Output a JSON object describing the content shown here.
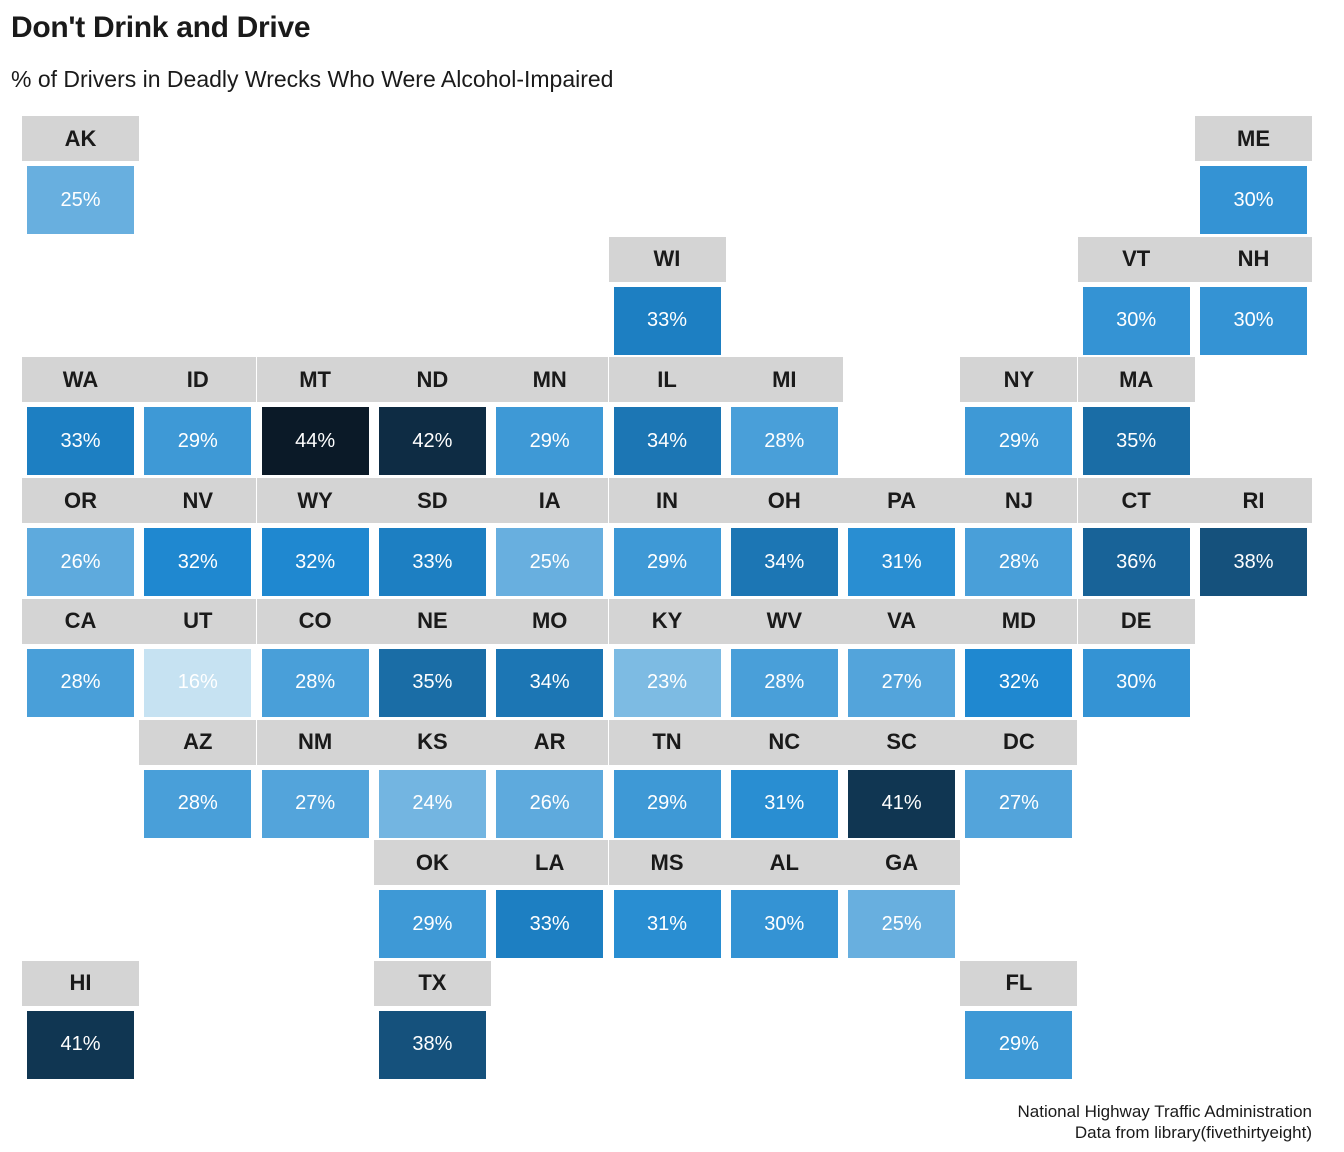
{
  "chart_data": {
    "type": "heatmap",
    "title": "Don't Drink and Drive",
    "subtitle": "% of Drivers in Deadly Wrecks Who Were Alcohol-Impaired",
    "caption_lines": [
      "National Highway Traffic Administration",
      "Data from library(fivethirtyeight)"
    ],
    "value_suffix": "%",
    "color_scale": {
      "min_value": 16,
      "max_value": 44,
      "low_color": "#c6e2f2",
      "mid_color": "#1f88d0",
      "high_color": "#0b1a28"
    },
    "tiles": [
      {
        "state": "AK",
        "value": 25,
        "row": 0,
        "col": 0
      },
      {
        "state": "ME",
        "value": 30,
        "row": 0,
        "col": 10
      },
      {
        "state": "WI",
        "value": 33,
        "row": 1,
        "col": 5
      },
      {
        "state": "VT",
        "value": 30,
        "row": 1,
        "col": 9
      },
      {
        "state": "NH",
        "value": 30,
        "row": 1,
        "col": 10
      },
      {
        "state": "WA",
        "value": 33,
        "row": 2,
        "col": 0
      },
      {
        "state": "ID",
        "value": 29,
        "row": 2,
        "col": 1
      },
      {
        "state": "MT",
        "value": 44,
        "row": 2,
        "col": 2
      },
      {
        "state": "ND",
        "value": 42,
        "row": 2,
        "col": 3
      },
      {
        "state": "MN",
        "value": 29,
        "row": 2,
        "col": 4
      },
      {
        "state": "IL",
        "value": 34,
        "row": 2,
        "col": 5
      },
      {
        "state": "MI",
        "value": 28,
        "row": 2,
        "col": 6
      },
      {
        "state": "NY",
        "value": 29,
        "row": 2,
        "col": 8
      },
      {
        "state": "MA",
        "value": 35,
        "row": 2,
        "col": 9
      },
      {
        "state": "OR",
        "value": 26,
        "row": 3,
        "col": 0
      },
      {
        "state": "NV",
        "value": 32,
        "row": 3,
        "col": 1
      },
      {
        "state": "WY",
        "value": 32,
        "row": 3,
        "col": 2
      },
      {
        "state": "SD",
        "value": 33,
        "row": 3,
        "col": 3
      },
      {
        "state": "IA",
        "value": 25,
        "row": 3,
        "col": 4
      },
      {
        "state": "IN",
        "value": 29,
        "row": 3,
        "col": 5
      },
      {
        "state": "OH",
        "value": 34,
        "row": 3,
        "col": 6
      },
      {
        "state": "PA",
        "value": 31,
        "row": 3,
        "col": 7
      },
      {
        "state": "NJ",
        "value": 28,
        "row": 3,
        "col": 8
      },
      {
        "state": "CT",
        "value": 36,
        "row": 3,
        "col": 9
      },
      {
        "state": "RI",
        "value": 38,
        "row": 3,
        "col": 10
      },
      {
        "state": "CA",
        "value": 28,
        "row": 4,
        "col": 0
      },
      {
        "state": "UT",
        "value": 16,
        "row": 4,
        "col": 1
      },
      {
        "state": "CO",
        "value": 28,
        "row": 4,
        "col": 2
      },
      {
        "state": "NE",
        "value": 35,
        "row": 4,
        "col": 3
      },
      {
        "state": "MO",
        "value": 34,
        "row": 4,
        "col": 4
      },
      {
        "state": "KY",
        "value": 23,
        "row": 4,
        "col": 5
      },
      {
        "state": "WV",
        "value": 28,
        "row": 4,
        "col": 6
      },
      {
        "state": "VA",
        "value": 27,
        "row": 4,
        "col": 7
      },
      {
        "state": "MD",
        "value": 32,
        "row": 4,
        "col": 8
      },
      {
        "state": "DE",
        "value": 30,
        "row": 4,
        "col": 9
      },
      {
        "state": "AZ",
        "value": 28,
        "row": 5,
        "col": 1
      },
      {
        "state": "NM",
        "value": 27,
        "row": 5,
        "col": 2
      },
      {
        "state": "KS",
        "value": 24,
        "row": 5,
        "col": 3
      },
      {
        "state": "AR",
        "value": 26,
        "row": 5,
        "col": 4
      },
      {
        "state": "TN",
        "value": 29,
        "row": 5,
        "col": 5
      },
      {
        "state": "NC",
        "value": 31,
        "row": 5,
        "col": 6
      },
      {
        "state": "SC",
        "value": 41,
        "row": 5,
        "col": 7
      },
      {
        "state": "DC",
        "value": 27,
        "row": 5,
        "col": 8
      },
      {
        "state": "OK",
        "value": 29,
        "row": 6,
        "col": 3
      },
      {
        "state": "LA",
        "value": 33,
        "row": 6,
        "col": 4
      },
      {
        "state": "MS",
        "value": 31,
        "row": 6,
        "col": 5
      },
      {
        "state": "AL",
        "value": 30,
        "row": 6,
        "col": 6
      },
      {
        "state": "GA",
        "value": 25,
        "row": 6,
        "col": 7
      },
      {
        "state": "HI",
        "value": 41,
        "row": 7,
        "col": 0
      },
      {
        "state": "TX",
        "value": 38,
        "row": 7,
        "col": 3
      },
      {
        "state": "FL",
        "value": 29,
        "row": 7,
        "col": 8
      }
    ]
  }
}
